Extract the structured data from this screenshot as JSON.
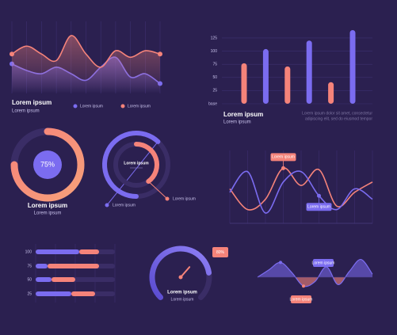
{
  "chart_data": [
    {
      "type": "wave",
      "title": "Lorem ipsum",
      "subtitle": "Lorem ipsum",
      "categories": [
        null,
        null,
        null,
        null,
        null,
        null,
        null,
        null,
        null,
        null,
        null
      ],
      "ylim": [
        0,
        100
      ],
      "series": [
        {
          "name": "Lorem ipsum",
          "color": "#7b6cf0",
          "values": [
            45,
            35,
            30,
            40,
            30,
            20,
            40,
            55,
            25,
            30,
            15
          ]
        },
        {
          "name": "Lorem ipsum",
          "color": "#f5837a",
          "values": [
            60,
            72,
            60,
            50,
            88,
            60,
            40,
            65,
            55,
            65,
            60
          ]
        }
      ]
    },
    {
      "type": "bar",
      "title": "Lorem ipsum",
      "subtitle": "Lorem ipsum",
      "annotations": [
        "Lorem ipsum dolor sit amet, consectetur",
        "adipiscing elit, sed do eiusmod tempor"
      ],
      "categories": [
        null,
        null,
        null,
        null,
        null,
        null
      ],
      "values": [
        77,
        104,
        71,
        120,
        41,
        140
      ],
      "colors": [
        "#f5837a",
        "#7b6cf0",
        "#f5837a",
        "#7b6cf0",
        "#f5837a",
        "#7b6cf0"
      ],
      "ylim": [
        0,
        140
      ],
      "yticks": [
        {
          "value": 0,
          "label": "base"
        },
        25,
        50,
        75,
        100,
        125
      ],
      "grid": true
    },
    {
      "type": "donut",
      "title": "Lorem ipsum",
      "subtitle": "Lorem ipsum",
      "values": [
        75
      ],
      "value_labels": [
        "75%"
      ],
      "color": "#f5837a"
    },
    {
      "type": "radial",
      "title": "Lorem ipsum",
      "categories": [
        "Lorem ipsum",
        "Lorem ipsum"
      ],
      "values": [
        62,
        40
      ],
      "colors": [
        "#7b6cf0",
        "#f5837a"
      ]
    },
    {
      "type": "line",
      "categories": [
        null,
        null,
        null,
        null,
        null,
        null,
        null,
        null,
        null
      ],
      "ylim": [
        0,
        100
      ],
      "series": [
        {
          "name": "Lorem ipsum",
          "color": "#f5837a",
          "values": [
            50,
            20,
            35,
            80,
            55,
            78,
            25,
            45,
            60
          ]
        },
        {
          "name": "Lorem ipsum",
          "color": "#7b6cf0",
          "values": [
            45,
            75,
            15,
            60,
            75,
            40,
            20,
            50,
            35
          ]
        }
      ]
    },
    {
      "type": "hbar",
      "categories": [
        "100",
        "75",
        "50",
        "25"
      ],
      "xlim": [
        0,
        100
      ],
      "series": [
        {
          "color": "#7b6cf0",
          "values": [
            55,
            15,
            20,
            45
          ]
        },
        {
          "color": "#f5837a",
          "values": [
            25,
            65,
            30,
            30
          ]
        }
      ]
    },
    {
      "type": "gauge",
      "title": "Lorem ipsum",
      "subtitle": "Lorem ipsum",
      "values": [
        80
      ],
      "value_labels": [
        "80%"
      ],
      "ylim": [
        0,
        100
      ]
    },
    {
      "type": "area",
      "categories": [
        null,
        null,
        null,
        null,
        null,
        null,
        null,
        null,
        null,
        null,
        null
      ],
      "ylim": [
        -30,
        30
      ],
      "values": [
        0,
        10,
        20,
        6,
        -12,
        -6,
        14,
        -10,
        8,
        24,
        4
      ],
      "colors": [
        "#7b6cf0",
        "#f5837a"
      ],
      "annotations": [
        "Lorem ipsum",
        "Lorem ipsum"
      ]
    }
  ]
}
